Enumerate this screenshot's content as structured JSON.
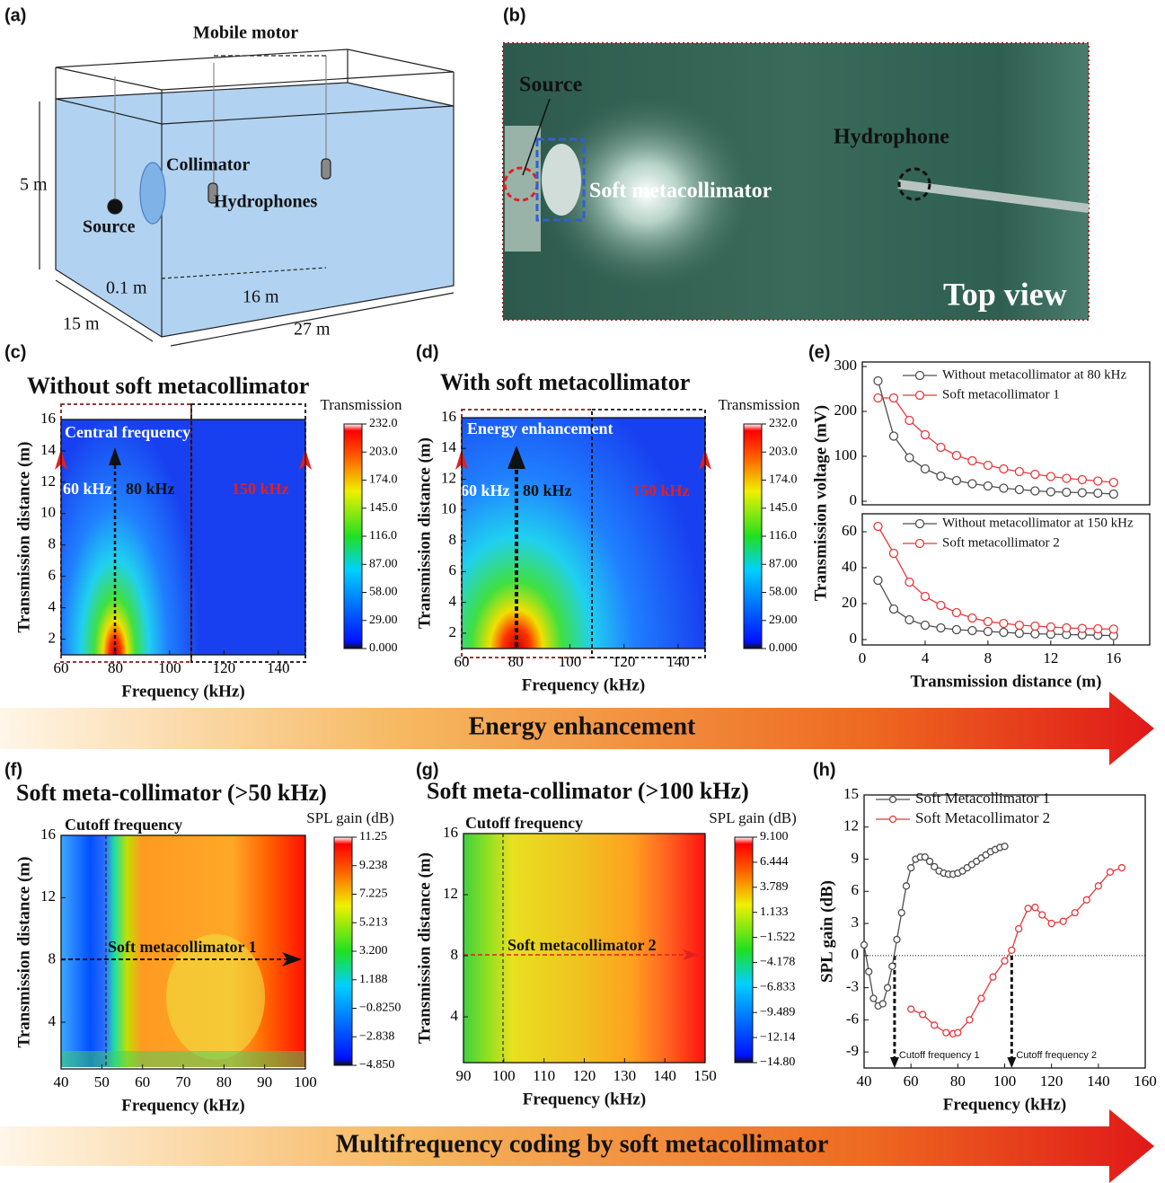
{
  "panel_labels": [
    "(a)",
    "(b)",
    "(c)",
    "(d)",
    "(e)",
    "(f)",
    "(g)",
    "(h)"
  ],
  "diagram": {
    "mobile_motor": "Mobile motor",
    "height": "5 m",
    "collimator": "Collimator",
    "source": "Source",
    "hydrophones": "Hydrophones",
    "offset": "0.1 m",
    "span": "16 m",
    "width": "15 m",
    "length": "27 m"
  },
  "photo": {
    "source": "Source",
    "hydrophone": "Hydrophone",
    "metacollimator": "Soft metacollimator",
    "view": "Top view"
  },
  "annotations": {
    "c": {
      "central": "Central frequency",
      "f60": "60 kHz",
      "f80": "80 kHz",
      "f150": "150 kHz"
    },
    "d": {
      "energy": "Energy enhancement",
      "f60": "60 kHz",
      "f80": "80 kHz",
      "f150": "150 kHz"
    },
    "f": {
      "cutoff": "Cutoff frequency",
      "device": "Soft metacollimator 1"
    },
    "g": {
      "cutoff": "Cutoff frequency",
      "device": "Soft metacollimator 2"
    }
  },
  "banners": [
    "Energy enhancement",
    "Multifrequency coding by soft metacollimator"
  ],
  "chart_data": [
    {
      "type": "contour",
      "title": "Without soft metacollimator",
      "xlabel": "Frequency (kHz)",
      "ylabel": "Transmission distance (m)",
      "xlim": [
        60,
        150
      ],
      "ylim": [
        1,
        16
      ],
      "xticks": [
        60,
        80,
        100,
        120,
        140
      ],
      "yticks": [
        2,
        4,
        6,
        8,
        10,
        12,
        14,
        16
      ],
      "colorbar": {
        "label": "Transmission",
        "clim": [
          0,
          232
        ],
        "ticks": [
          {
            "value": 232,
            "label": "232.0"
          },
          {
            "value": 203,
            "label": "203.0"
          },
          {
            "value": 174,
            "label": "174.0"
          },
          {
            "value": 145,
            "label": "145.0"
          },
          {
            "value": 116,
            "label": "116.0"
          },
          {
            "value": 87,
            "label": "87.00"
          },
          {
            "value": 58,
            "label": "58.00"
          },
          {
            "value": 29,
            "label": "29.00"
          },
          {
            "value": 0,
            "label": "0.000"
          }
        ]
      }
    },
    {
      "type": "contour",
      "title": "With soft metacollimator",
      "xlabel": "Frequency (kHz)",
      "ylabel": "Transmission distance (m)",
      "xlim": [
        60,
        150
      ],
      "ylim": [
        1,
        16
      ],
      "xticks": [
        60,
        80,
        100,
        120,
        140
      ],
      "yticks": [
        2,
        4,
        6,
        8,
        10,
        12,
        14,
        16
      ],
      "colorbar": {
        "label": "Transmission",
        "clim": [
          0,
          232
        ],
        "ticks": [
          {
            "value": 232,
            "label": "232.0"
          },
          {
            "value": 203,
            "label": "203.0"
          },
          {
            "value": 174,
            "label": "174.0"
          },
          {
            "value": 145,
            "label": "145.0"
          },
          {
            "value": 116,
            "label": "116.0"
          },
          {
            "value": 87,
            "label": "87.00"
          },
          {
            "value": 58,
            "label": "58.00"
          },
          {
            "value": 29,
            "label": "29.00"
          },
          {
            "value": 0,
            "label": "0.000"
          }
        ]
      }
    },
    {
      "type": "line",
      "ylabel": "Transmission voltage (mV)",
      "xlim": [
        0,
        18.3
      ],
      "ylim": [
        -8,
        310
      ],
      "yticks": [
        0,
        100,
        200,
        300
      ],
      "series": [
        {
          "name": "Without metacollimator at 80 kHz",
          "color": "#4d4d4d",
          "x": [
            1,
            2,
            3,
            4,
            5,
            6,
            7,
            8,
            9,
            10,
            11,
            12,
            13,
            14,
            15,
            16
          ],
          "values": [
            268,
            145,
            97,
            72,
            56,
            46,
            39,
            34,
            29,
            26,
            23,
            21,
            20,
            19,
            18,
            16
          ]
        },
        {
          "name": "Soft metacollimator 1",
          "color": "#e8383a",
          "x": [
            1,
            2,
            3,
            4,
            5,
            6,
            7,
            8,
            9,
            10,
            11,
            12,
            13,
            14,
            15,
            16
          ],
          "values": [
            230,
            230,
            180,
            148,
            120,
            102,
            90,
            80,
            72,
            66,
            60,
            55,
            51,
            48,
            45,
            42
          ]
        }
      ]
    },
    {
      "type": "line",
      "xlabel": "Transmission distance (m)",
      "xlim": [
        0,
        18.3
      ],
      "ylim": [
        -3,
        70
      ],
      "xticks": [
        0,
        4,
        8,
        12,
        16
      ],
      "yticks": [
        0,
        20,
        40,
        60
      ],
      "series": [
        {
          "name": "Without metacollimator at 150 kHz",
          "color": "#4d4d4d",
          "x": [
            1,
            2,
            3,
            4,
            5,
            6,
            7,
            8,
            9,
            10,
            11,
            12,
            13,
            14,
            15,
            16
          ],
          "values": [
            33,
            17,
            11,
            8,
            6.5,
            5.5,
            5,
            4.5,
            4,
            3.5,
            3.2,
            3,
            2.8,
            2.6,
            2.4,
            2.2
          ]
        },
        {
          "name": "Soft metacollimator 2",
          "color": "#e8383a",
          "x": [
            1,
            2,
            3,
            4,
            5,
            6,
            7,
            8,
            9,
            10,
            11,
            12,
            13,
            14,
            15,
            16
          ],
          "values": [
            63,
            48,
            32,
            24,
            19,
            15,
            12,
            10,
            9,
            8,
            7.5,
            7,
            6.5,
            6.2,
            6,
            5.8
          ]
        }
      ]
    },
    {
      "type": "contour",
      "title": "Soft meta-collimator (>50 kHz)",
      "xlabel": "Frequency (kHz)",
      "ylabel": "Transmission distance (m)",
      "xlim": [
        40,
        100
      ],
      "ylim": [
        1,
        16
      ],
      "xticks": [
        40,
        50,
        60,
        70,
        80,
        90,
        100
      ],
      "yticks": [
        4,
        8,
        12,
        16
      ],
      "colorbar": {
        "label": "SPL gain (dB)",
        "clim": [
          -4.85,
          11.25
        ],
        "ticks": [
          11.25,
          9.238,
          7.225,
          5.213,
          {
            "value": 3.2,
            "label": "3.200"
          },
          1.188,
          {
            "value": -0.825,
            "label": "−0.8250"
          },
          {
            "value": -2.838,
            "label": "−2.838"
          },
          {
            "value": -4.85,
            "label": "−4.850"
          }
        ]
      }
    },
    {
      "type": "contour",
      "title": "Soft meta-collimator (>100 kHz)",
      "xlabel": "Frequency (kHz)",
      "ylabel": "Transmission distance (m)",
      "xlim": [
        90,
        150
      ],
      "ylim": [
        1,
        16
      ],
      "xticks": [
        90,
        100,
        110,
        120,
        130,
        140,
        150
      ],
      "yticks": [
        4,
        8,
        12,
        16
      ],
      "colorbar": {
        "label": "SPL  gain (dB)",
        "clim": [
          -14.8,
          9.1
        ],
        "ticks": [
          {
            "value": 9.1,
            "label": "9.100"
          },
          6.444,
          3.789,
          1.133,
          {
            "value": -1.522,
            "label": "−1.522"
          },
          {
            "value": -4.178,
            "label": "−4.178"
          },
          {
            "value": -6.833,
            "label": "−6.833"
          },
          {
            "value": -9.489,
            "label": "−9.489"
          },
          {
            "value": -12.14,
            "label": "−12.14"
          },
          {
            "value": -14.8,
            "label": "−14.80"
          }
        ]
      }
    },
    {
      "type": "line",
      "xlabel": "Frequency (kHz)",
      "ylabel": "SPL  gain (dB)",
      "xlim": [
        40,
        160
      ],
      "ylim": [
        -10.5,
        15
      ],
      "xticks": [
        40,
        60,
        80,
        100,
        120,
        140,
        160
      ],
      "yticks": [
        -9,
        -6,
        -3,
        0,
        3,
        6,
        9,
        12,
        15
      ],
      "hline": 0,
      "cutoffs": [
        {
          "text": "Cutoff frequency 1",
          "x": 53
        },
        {
          "text": "Cutoff frequency 2",
          "x": 103
        }
      ],
      "series": [
        {
          "name": "Soft Metacollimator 1",
          "color": "#4d4d4d",
          "x": [
            40,
            42,
            44,
            46,
            48,
            50,
            52,
            54,
            56,
            58,
            60,
            62,
            64,
            66,
            68,
            70,
            72,
            74,
            76,
            78,
            80,
            82,
            84,
            86,
            88,
            90,
            92,
            94,
            96,
            98,
            100
          ],
          "values": [
            1,
            -1.5,
            -4,
            -4.7,
            -4.5,
            -3,
            -1,
            1.5,
            4,
            6.5,
            8.2,
            9,
            9.2,
            9.2,
            8.8,
            8.3,
            7.9,
            7.7,
            7.6,
            7.6,
            7.7,
            7.9,
            8.2,
            8.5,
            8.8,
            9.1,
            9.4,
            9.7,
            9.9,
            10.1,
            10.2
          ]
        },
        {
          "name": "Soft Metacollimator 2",
          "color": "#e8383a",
          "x": [
            60,
            65,
            70,
            75,
            78,
            80,
            85,
            90,
            95,
            100,
            103,
            106,
            110,
            113,
            116,
            120,
            125,
            130,
            135,
            140,
            145,
            150
          ],
          "values": [
            -5,
            -5.5,
            -6.5,
            -7.2,
            -7.3,
            -7.2,
            -6,
            -4,
            -2,
            -0.5,
            0.5,
            2.5,
            4.4,
            4.5,
            3.8,
            3,
            3.2,
            4,
            5.2,
            6.5,
            7.8,
            8.2
          ]
        }
      ]
    }
  ]
}
